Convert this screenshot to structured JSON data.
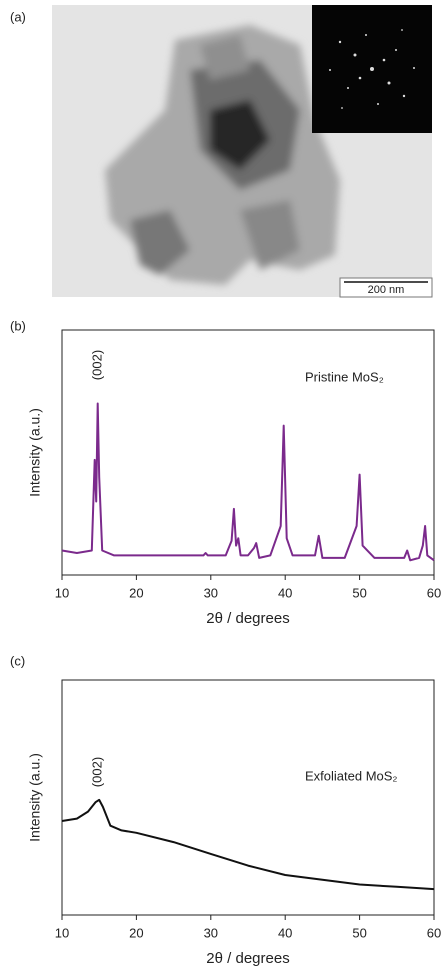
{
  "panel_labels": [
    "(a)",
    "(b)",
    "(c)"
  ],
  "image": {
    "scale_bar": "200 nm"
  },
  "chart_data": [
    {
      "type": "line",
      "xlabel": "2θ / degrees",
      "ylabel": "Intensity (a.u.)",
      "annotation": "(002)",
      "x": [
        10,
        12,
        14,
        14.4,
        14.6,
        14.8,
        15.0,
        15.4,
        17,
        20,
        25,
        29,
        29.3,
        29.6,
        32,
        32.8,
        33.1,
        33.4,
        33.7,
        34.0,
        35,
        35.8,
        36.1,
        36.5,
        38,
        39.4,
        39.8,
        40.2,
        41,
        44,
        44.5,
        45,
        48,
        49.6,
        50,
        50.4,
        52,
        56,
        56.4,
        56.8,
        58,
        58.5,
        58.8,
        59.1,
        60
      ],
      "series": [
        {
          "name": "Pristine MoS₂",
          "color": "#7b2a8c",
          "values": [
            10,
            9,
            10,
            47,
            30,
            70,
            40,
            10,
            8,
            8,
            8,
            8,
            9,
            8,
            8,
            14,
            27,
            12,
            15,
            8,
            8,
            11,
            13,
            7,
            8,
            20,
            61,
            15,
            8,
            8,
            16,
            7,
            7,
            20,
            41,
            12,
            7,
            7,
            10,
            6,
            7,
            12,
            20,
            8,
            6
          ]
        }
      ],
      "xlim": [
        10,
        60
      ],
      "xticks": [
        10,
        20,
        30,
        40,
        50,
        60
      ],
      "ylim": [
        0,
        100
      ]
    },
    {
      "type": "line",
      "xlabel": "2θ / degrees",
      "ylabel": "Intensity (a.u.)",
      "annotation": "(002)",
      "x": [
        10,
        12,
        13.5,
        14.5,
        15,
        15.5,
        16.5,
        18,
        20,
        25,
        30,
        35,
        40,
        45,
        50,
        55,
        60
      ],
      "series": [
        {
          "name": "Exfoliated MoS₂",
          "color": "#111111",
          "values": [
            40,
            41,
            44,
            48,
            49,
            46,
            38,
            36,
            35,
            31,
            26,
            21,
            17,
            15,
            13,
            12,
            11
          ]
        }
      ],
      "xlim": [
        10,
        60
      ],
      "xticks": [
        10,
        20,
        30,
        40,
        50,
        60
      ],
      "ylim": [
        0,
        100
      ]
    }
  ]
}
